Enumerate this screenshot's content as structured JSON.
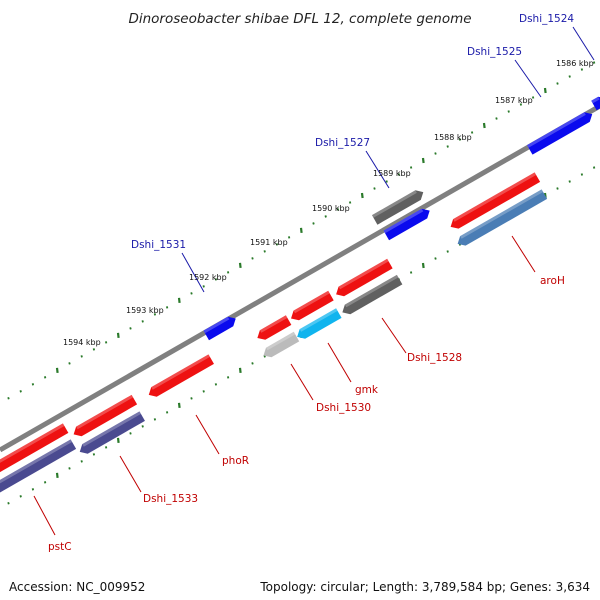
{
  "title": "Dinoroseobacter shibae DFL 12, complete genome",
  "footer": {
    "accession": "Accession: NC_009952",
    "topology": "Topology: circular; Length: 3,789,584 bp; Genes: 3,634"
  },
  "colors": {
    "backbone": "#808080",
    "tick": "#2a7a2a",
    "forward_gene_label": "#1a1aa8",
    "reverse_gene_label": "#c00000",
    "cds_forward": "#0a0aee",
    "gene_red": "#ee1111",
    "gene_gray": "#606060",
    "gene_steelblue": "#4a7db5",
    "gene_navy": "#4a4a90",
    "gene_cyan": "#10b4ee",
    "gene_lightgray": "#bbbbbb"
  },
  "ticks": [
    {
      "label": "1586 kbp"
    },
    {
      "label": "1587 kbp"
    },
    {
      "label": "1588 kbp"
    },
    {
      "label": "1589 kbp"
    },
    {
      "label": "1590 kbp"
    },
    {
      "label": "1591 kbp"
    },
    {
      "label": "1592 kbp"
    },
    {
      "label": "1593 kbp"
    },
    {
      "label": "1594 kbp"
    }
  ],
  "forward_labels": [
    {
      "name": "Dshi_1524"
    },
    {
      "name": "Dshi_1525"
    },
    {
      "name": "Dshi_1527"
    },
    {
      "name": "Dshi_1531"
    }
  ],
  "reverse_labels": [
    {
      "name": "aroH"
    },
    {
      "name": "Dshi_1528"
    },
    {
      "name": "gmk"
    },
    {
      "name": "Dshi_1530"
    },
    {
      "name": "phoR"
    },
    {
      "name": "Dshi_1533"
    },
    {
      "name": "pstC"
    }
  ]
}
